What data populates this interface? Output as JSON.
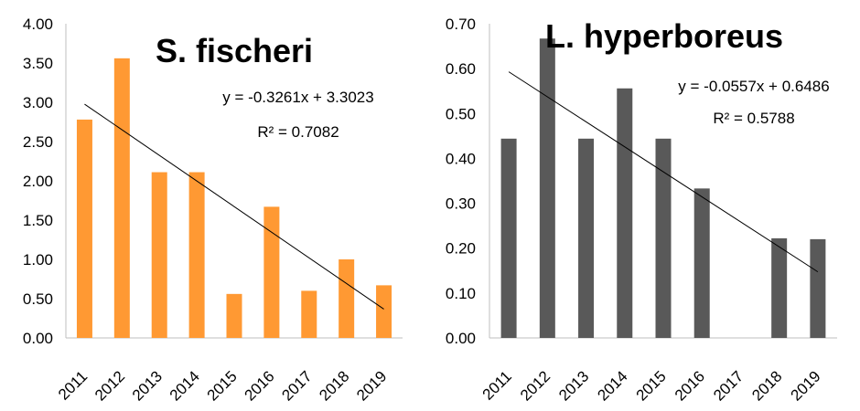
{
  "chart_data": [
    {
      "type": "bar",
      "title": "S. fischeri",
      "categories": [
        "2011",
        "2012",
        "2013",
        "2014",
        "2015",
        "2016",
        "2017",
        "2018",
        "2019"
      ],
      "values": [
        2.78,
        3.56,
        2.11,
        2.11,
        0.56,
        1.67,
        0.6,
        1.0,
        0.67
      ],
      "ylim": [
        0,
        4.0
      ],
      "yticks": [
        "0.00",
        "0.50",
        "1.00",
        "1.50",
        "2.00",
        "2.50",
        "3.00",
        "3.50",
        "4.00"
      ],
      "color": "#FF9933",
      "trendline": {
        "slope": -0.3261,
        "intercept": 3.3023
      },
      "equation": "y = -0.3261x + 3.3023",
      "r2": "R² = 0.7082",
      "grid": false
    },
    {
      "type": "bar",
      "title": "L. hyperboreus",
      "categories": [
        "2011",
        "2012",
        "2013",
        "2014",
        "2015",
        "2016",
        "2017",
        "2018",
        "2019"
      ],
      "values": [
        0.444,
        0.667,
        0.444,
        0.556,
        0.444,
        0.333,
        0,
        0.222,
        0.22
      ],
      "ylim": [
        0,
        0.7
      ],
      "yticks": [
        "0.00",
        "0.10",
        "0.20",
        "0.30",
        "0.40",
        "0.50",
        "0.60",
        "0.70"
      ],
      "color": "#595959",
      "trendline": {
        "slope": -0.0557,
        "intercept": 0.6486
      },
      "equation": "y = -0.0557x + 0.6486",
      "r2": "R² = 0.5788",
      "grid": false
    }
  ]
}
